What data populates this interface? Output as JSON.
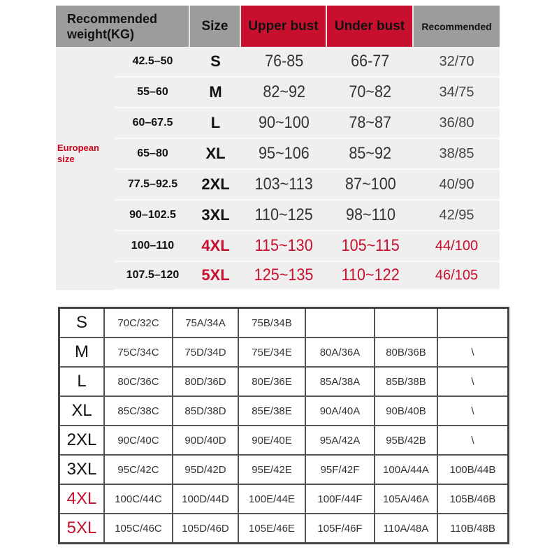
{
  "top_table": {
    "headers": {
      "weight": "Recommended weight(KG)",
      "size": "Size",
      "upper": "Upper bust",
      "under": "Under bust",
      "recommended": "Recommended"
    },
    "group_label": "European size",
    "rows": [
      {
        "weight": "42.5–50",
        "size": "S",
        "upper": "76-85",
        "under": "66-77",
        "rec": "32/70",
        "highlight": false
      },
      {
        "weight": "55–60",
        "size": "M",
        "upper": "82~92",
        "under": "70~82",
        "rec": "34/75",
        "highlight": false
      },
      {
        "weight": "60–67.5",
        "size": "L",
        "upper": "90~100",
        "under": "78~87",
        "rec": "36/80",
        "highlight": false
      },
      {
        "weight": "65–80",
        "size": "XL",
        "upper": "95~106",
        "under": "85~92",
        "rec": "38/85",
        "highlight": false
      },
      {
        "weight": "77.5–92.5",
        "size": "2XL",
        "upper": "103~113",
        "under": "87~100",
        "rec": "40/90",
        "highlight": false
      },
      {
        "weight": "90–102.5",
        "size": "3XL",
        "upper": "110~125",
        "under": "98~110",
        "rec": "42/95",
        "highlight": false
      },
      {
        "weight": "100–110",
        "size": "4XL",
        "upper": "115~130",
        "under": "105~115",
        "rec": "44/100",
        "highlight": true
      },
      {
        "weight": "107.5–120",
        "size": "5XL",
        "upper": "125~135",
        "under": "110~122",
        "rec": "46/105",
        "highlight": true
      }
    ]
  },
  "bottom_table": {
    "rows": [
      {
        "size": "S",
        "cells": [
          "70C/32C",
          "75A/34A",
          "75B/34B",
          "",
          "",
          ""
        ],
        "highlight": false
      },
      {
        "size": "M",
        "cells": [
          "75C/34C",
          "75D/34D",
          "75E/34E",
          "80A/36A",
          "80B/36B",
          "\\"
        ],
        "highlight": false
      },
      {
        "size": "L",
        "cells": [
          "80C/36C",
          "80D/36D",
          "80E/36E",
          "85A/38A",
          "85B/38B",
          "\\"
        ],
        "highlight": false
      },
      {
        "size": "XL",
        "cells": [
          "85C/38C",
          "85D/38D",
          "85E/38E",
          "90A/40A",
          "90B/40B",
          "\\"
        ],
        "highlight": false
      },
      {
        "size": "2XL",
        "cells": [
          "90C/40C",
          "90D/40D",
          "90E/40E",
          "95A/42A",
          "95B/42B",
          "\\"
        ],
        "highlight": false
      },
      {
        "size": "3XL",
        "cells": [
          "95C/42C",
          "95D/42D",
          "95E/42E",
          "95F/42F",
          "100A/44A",
          "100B/44B"
        ],
        "highlight": false
      },
      {
        "size": "4XL",
        "cells": [
          "100C/44C",
          "100D/44D",
          "100E/44E",
          "100F/44F",
          "105A/46A",
          "105B/46B"
        ],
        "highlight": true
      },
      {
        "size": "5XL",
        "cells": [
          "105C/46C",
          "105D/46D",
          "105E/46E",
          "105F/46F",
          "110A/48A",
          "110B/48B"
        ],
        "highlight": true
      }
    ]
  },
  "colors": {
    "accent_red": "#c8102e",
    "header_gray": "#9c9c9c"
  }
}
